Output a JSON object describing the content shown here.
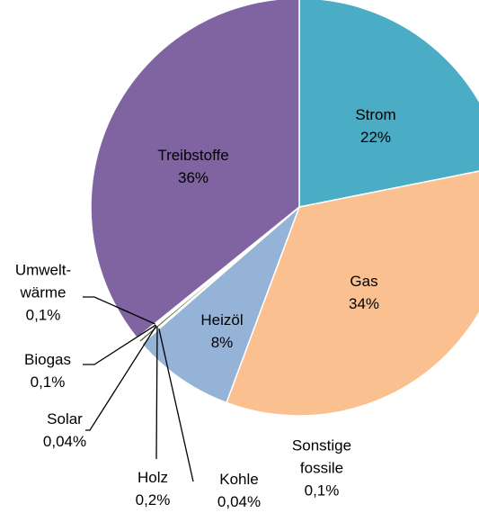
{
  "chart_data": {
    "type": "pie",
    "categories": [
      "Strom",
      "Gas",
      "Heizöl",
      "Kohle",
      "Sonstige\nfossile",
      "Holz",
      "Solar",
      "Biogas",
      "Umwelt-\nwärme",
      "Treibstoffe"
    ],
    "values": [
      22,
      34,
      8,
      0.04,
      0.1,
      0.2,
      0.04,
      0.1,
      0.1,
      36
    ],
    "value_labels": [
      "22%",
      "34%",
      "8%",
      "0,04%",
      "0,1%",
      "0,2%",
      "0,04%",
      "0,1%",
      "0,1%",
      "36%"
    ],
    "colors": [
      "#4bacc6",
      "#fac090",
      "#95b3d7",
      "#1f3864",
      "#7f6000",
      "#4f6228",
      "#c0504d",
      "#3f3151",
      "#17375e",
      "#8064a2"
    ]
  }
}
